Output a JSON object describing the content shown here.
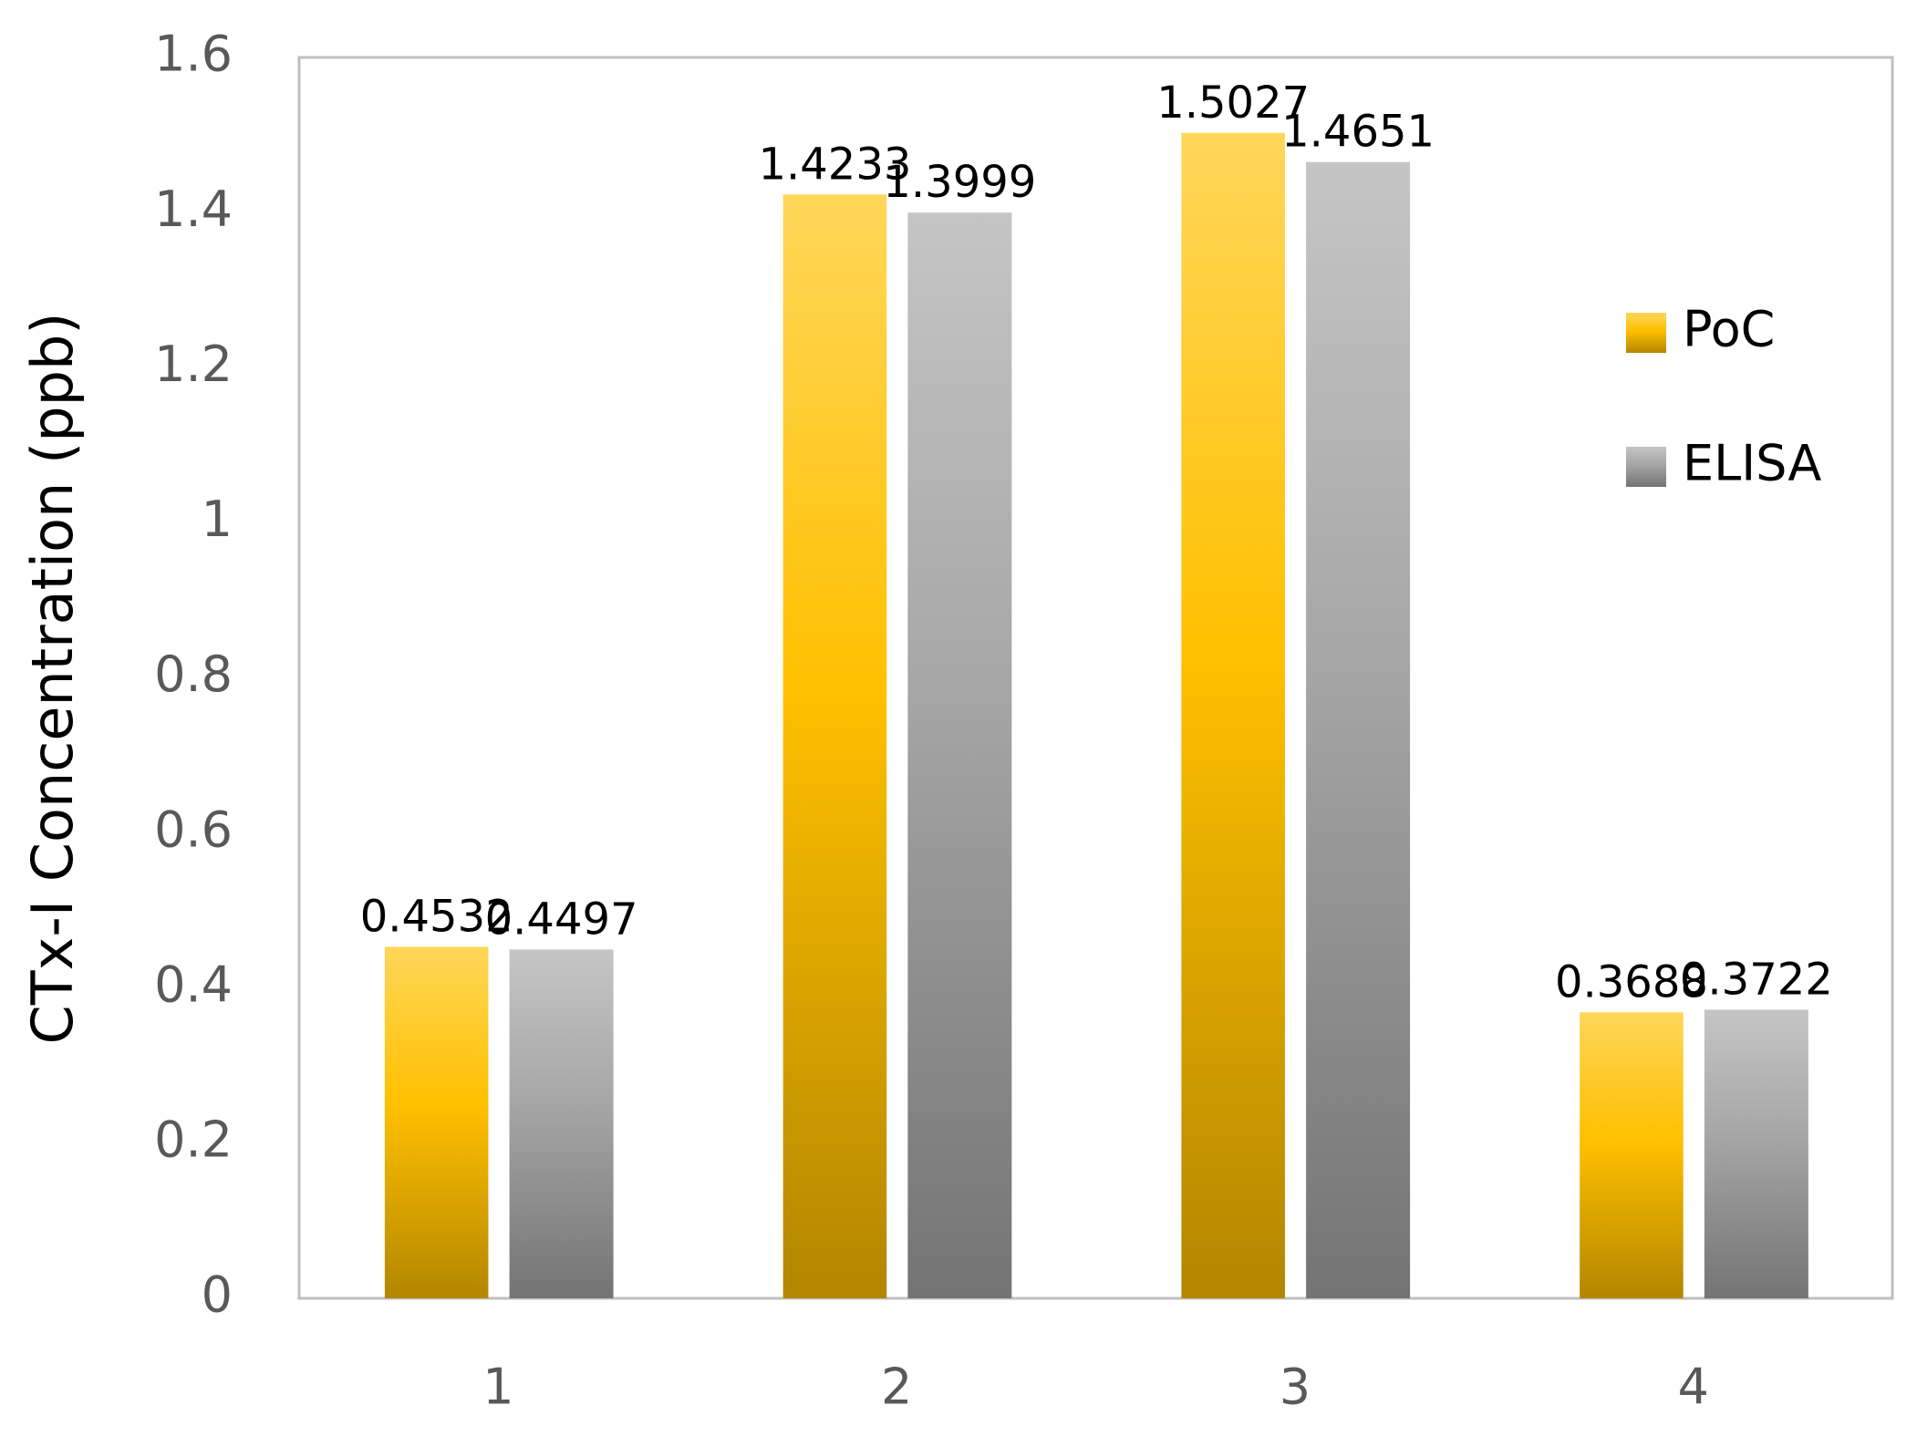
{
  "chart_data": {
    "type": "bar",
    "y_label": "CTx-I Concentration (ppb)",
    "categories": [
      "1",
      "2",
      "3",
      "4"
    ],
    "series": [
      {
        "name": "PoC",
        "color": "#ffc000",
        "values": [
          0.4532,
          1.4233,
          1.5027,
          0.3688
        ]
      },
      {
        "name": "ELISA",
        "color": "#a5a5a5",
        "values": [
          0.4497,
          1.3999,
          1.4651,
          0.3722
        ]
      }
    ],
    "ylim": [
      0,
      1.6
    ],
    "yticks": [
      0,
      0.2,
      0.4,
      0.6,
      0.8,
      1,
      1.2,
      1.4,
      1.6
    ],
    "grid": false,
    "legend": "right"
  }
}
